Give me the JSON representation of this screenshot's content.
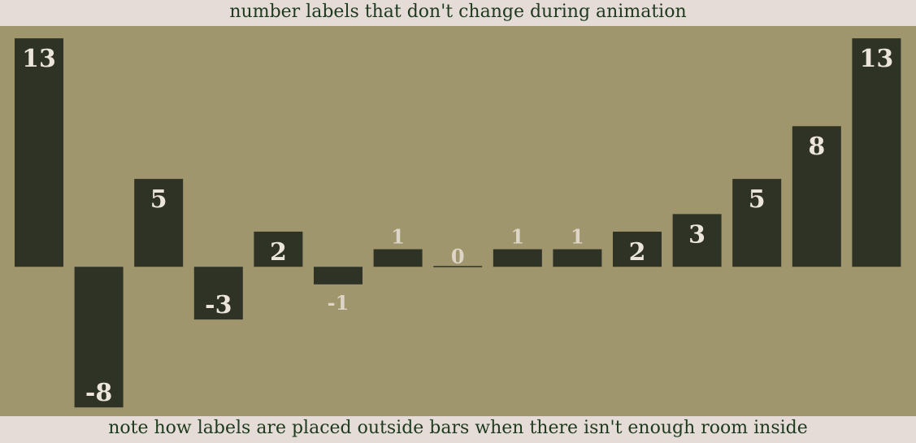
{
  "header": {
    "caption": "number labels that don't change during animation"
  },
  "footer": {
    "caption": "note how labels are placed outside bars when there isn't enough room inside"
  },
  "colors": {
    "background": "#e5dcd8",
    "plot_background": "#a0966d",
    "bar": "#2f3326",
    "label_inside": "#ece5dc",
    "label_outside": "#ddd6c8",
    "caption_text": "#1e3a1e"
  },
  "chart_data": {
    "type": "bar",
    "title": "",
    "xlabel": "",
    "ylabel": "",
    "categories": [
      "",
      "",
      "",
      "",
      "",
      "",
      "",
      "",
      "",
      "",
      "",
      "",
      "",
      "",
      ""
    ],
    "values": [
      13,
      -8,
      5,
      -3,
      2,
      -1,
      1,
      0,
      1,
      1,
      2,
      3,
      5,
      8,
      13
    ],
    "labels": [
      "13",
      "-8",
      "5",
      "-3",
      "2",
      "-1",
      "1",
      "0",
      "1",
      "1",
      "2",
      "3",
      "5",
      "8",
      "13"
    ],
    "ylim": [
      -8.5,
      13.7
    ],
    "grid": false,
    "legend": "none"
  }
}
